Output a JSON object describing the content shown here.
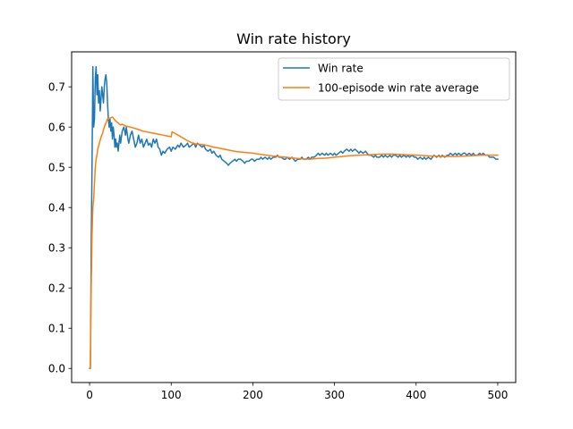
{
  "chart_data": {
    "type": "line",
    "title": "Win rate history",
    "xlabel": "",
    "ylabel": "",
    "xlim": [
      -22,
      522
    ],
    "ylim": [
      -0.035,
      0.787
    ],
    "x_ticks": [
      0,
      100,
      200,
      300,
      400,
      500
    ],
    "x_tick_labels": [
      "0",
      "100",
      "200",
      "300",
      "400",
      "500"
    ],
    "y_ticks": [
      0.0,
      0.1,
      0.2,
      0.3,
      0.4,
      0.5,
      0.6,
      0.7
    ],
    "y_tick_labels": [
      "0.0",
      "0.1",
      "0.2",
      "0.3",
      "0.4",
      "0.5",
      "0.6",
      "0.7"
    ],
    "grid": false,
    "legend_position": "top-right",
    "series": [
      {
        "name": "Win rate",
        "color": "#1f77b4",
        "points": [
          [
            0,
            0.0
          ],
          [
            1,
            0.0
          ],
          [
            2,
            0.3
          ],
          [
            3,
            0.5
          ],
          [
            4,
            0.75
          ],
          [
            5,
            0.6
          ],
          [
            6,
            0.62
          ],
          [
            7,
            0.72
          ],
          [
            8,
            0.75
          ],
          [
            9,
            0.68
          ],
          [
            10,
            0.73
          ],
          [
            11,
            0.66
          ],
          [
            12,
            0.69
          ],
          [
            13,
            0.64
          ],
          [
            14,
            0.67
          ],
          [
            15,
            0.7
          ],
          [
            16,
            0.68
          ],
          [
            17,
            0.66
          ],
          [
            18,
            0.7
          ],
          [
            19,
            0.72
          ],
          [
            20,
            0.73
          ],
          [
            21,
            0.71
          ],
          [
            22,
            0.66
          ],
          [
            23,
            0.62
          ],
          [
            24,
            0.6
          ],
          [
            25,
            0.62
          ],
          [
            26,
            0.59
          ],
          [
            27,
            0.61
          ],
          [
            28,
            0.57
          ],
          [
            29,
            0.6
          ],
          [
            30,
            0.58
          ],
          [
            31,
            0.55
          ],
          [
            32,
            0.57
          ],
          [
            33,
            0.55
          ],
          [
            34,
            0.56
          ],
          [
            35,
            0.54
          ],
          [
            36,
            0.56
          ],
          [
            37,
            0.58
          ],
          [
            38,
            0.56
          ],
          [
            40,
            0.59
          ],
          [
            42,
            0.6
          ],
          [
            44,
            0.58
          ],
          [
            45,
            0.6
          ],
          [
            47,
            0.57
          ],
          [
            48,
            0.56
          ],
          [
            50,
            0.58
          ],
          [
            52,
            0.59
          ],
          [
            54,
            0.57
          ],
          [
            56,
            0.55
          ],
          [
            58,
            0.56
          ],
          [
            60,
            0.58
          ],
          [
            62,
            0.56
          ],
          [
            64,
            0.57
          ],
          [
            66,
            0.55
          ],
          [
            68,
            0.56
          ],
          [
            70,
            0.57
          ],
          [
            72,
            0.555
          ],
          [
            74,
            0.56
          ],
          [
            76,
            0.55
          ],
          [
            78,
            0.57
          ],
          [
            80,
            0.56
          ],
          [
            82,
            0.57
          ],
          [
            84,
            0.55
          ],
          [
            86,
            0.545
          ],
          [
            88,
            0.53
          ],
          [
            90,
            0.54
          ],
          [
            92,
            0.535
          ],
          [
            95,
            0.545
          ],
          [
            98,
            0.55
          ],
          [
            100,
            0.54
          ],
          [
            102,
            0.55
          ],
          [
            105,
            0.545
          ],
          [
            108,
            0.555
          ],
          [
            110,
            0.55
          ],
          [
            112,
            0.56
          ],
          [
            115,
            0.55
          ],
          [
            118,
            0.555
          ],
          [
            120,
            0.56
          ],
          [
            122,
            0.55
          ],
          [
            125,
            0.555
          ],
          [
            128,
            0.56
          ],
          [
            130,
            0.55
          ],
          [
            132,
            0.56
          ],
          [
            135,
            0.555
          ],
          [
            138,
            0.55
          ],
          [
            140,
            0.555
          ],
          [
            142,
            0.545
          ],
          [
            145,
            0.54
          ],
          [
            148,
            0.545
          ],
          [
            150,
            0.535
          ],
          [
            152,
            0.54
          ],
          [
            155,
            0.53
          ],
          [
            158,
            0.525
          ],
          [
            160,
            0.53
          ],
          [
            162,
            0.52
          ],
          [
            165,
            0.515
          ],
          [
            168,
            0.51
          ],
          [
            170,
            0.505
          ],
          [
            172,
            0.51
          ],
          [
            175,
            0.515
          ],
          [
            178,
            0.52
          ],
          [
            180,
            0.515
          ],
          [
            182,
            0.52
          ],
          [
            185,
            0.52
          ],
          [
            188,
            0.515
          ],
          [
            190,
            0.51
          ],
          [
            192,
            0.515
          ],
          [
            195,
            0.515
          ],
          [
            198,
            0.52
          ],
          [
            200,
            0.52
          ],
          [
            202,
            0.515
          ],
          [
            205,
            0.52
          ],
          [
            208,
            0.52
          ],
          [
            210,
            0.525
          ],
          [
            212,
            0.52
          ],
          [
            215,
            0.525
          ],
          [
            218,
            0.52
          ],
          [
            220,
            0.525
          ],
          [
            222,
            0.52
          ],
          [
            225,
            0.525
          ],
          [
            228,
            0.525
          ],
          [
            230,
            0.53
          ],
          [
            232,
            0.525
          ],
          [
            235,
            0.525
          ],
          [
            238,
            0.52
          ],
          [
            240,
            0.52
          ],
          [
            242,
            0.525
          ],
          [
            245,
            0.52
          ],
          [
            248,
            0.525
          ],
          [
            250,
            0.52
          ],
          [
            252,
            0.515
          ],
          [
            255,
            0.52
          ],
          [
            258,
            0.52
          ],
          [
            260,
            0.525
          ],
          [
            262,
            0.52
          ],
          [
            265,
            0.52
          ],
          [
            268,
            0.525
          ],
          [
            270,
            0.52
          ],
          [
            272,
            0.525
          ],
          [
            275,
            0.525
          ],
          [
            278,
            0.53
          ],
          [
            280,
            0.535
          ],
          [
            282,
            0.53
          ],
          [
            285,
            0.535
          ],
          [
            288,
            0.53
          ],
          [
            290,
            0.535
          ],
          [
            292,
            0.53
          ],
          [
            295,
            0.535
          ],
          [
            298,
            0.53
          ],
          [
            300,
            0.535
          ],
          [
            302,
            0.53
          ],
          [
            305,
            0.535
          ],
          [
            308,
            0.54
          ],
          [
            310,
            0.535
          ],
          [
            312,
            0.54
          ],
          [
            315,
            0.545
          ],
          [
            318,
            0.54
          ],
          [
            320,
            0.545
          ],
          [
            322,
            0.54
          ],
          [
            325,
            0.545
          ],
          [
            328,
            0.54
          ],
          [
            330,
            0.535
          ],
          [
            332,
            0.54
          ],
          [
            335,
            0.535
          ],
          [
            338,
            0.54
          ],
          [
            340,
            0.535
          ],
          [
            342,
            0.53
          ],
          [
            345,
            0.53
          ],
          [
            348,
            0.525
          ],
          [
            350,
            0.53
          ],
          [
            352,
            0.525
          ],
          [
            355,
            0.525
          ],
          [
            358,
            0.53
          ],
          [
            360,
            0.525
          ],
          [
            362,
            0.53
          ],
          [
            365,
            0.525
          ],
          [
            368,
            0.53
          ],
          [
            370,
            0.525
          ],
          [
            372,
            0.53
          ],
          [
            375,
            0.53
          ],
          [
            378,
            0.525
          ],
          [
            380,
            0.53
          ],
          [
            382,
            0.525
          ],
          [
            385,
            0.53
          ],
          [
            388,
            0.525
          ],
          [
            390,
            0.53
          ],
          [
            392,
            0.525
          ],
          [
            395,
            0.53
          ],
          [
            398,
            0.525
          ],
          [
            400,
            0.525
          ],
          [
            402,
            0.52
          ],
          [
            405,
            0.525
          ],
          [
            408,
            0.52
          ],
          [
            410,
            0.525
          ],
          [
            412,
            0.52
          ],
          [
            415,
            0.525
          ],
          [
            418,
            0.52
          ],
          [
            420,
            0.525
          ],
          [
            422,
            0.53
          ],
          [
            425,
            0.525
          ],
          [
            428,
            0.53
          ],
          [
            430,
            0.525
          ],
          [
            432,
            0.53
          ],
          [
            435,
            0.525
          ],
          [
            438,
            0.53
          ],
          [
            440,
            0.53
          ],
          [
            442,
            0.535
          ],
          [
            445,
            0.53
          ],
          [
            448,
            0.535
          ],
          [
            450,
            0.53
          ],
          [
            452,
            0.535
          ],
          [
            455,
            0.53
          ],
          [
            458,
            0.535
          ],
          [
            460,
            0.535
          ],
          [
            462,
            0.53
          ],
          [
            465,
            0.535
          ],
          [
            468,
            0.53
          ],
          [
            470,
            0.535
          ],
          [
            472,
            0.53
          ],
          [
            475,
            0.53
          ],
          [
            478,
            0.535
          ],
          [
            480,
            0.53
          ],
          [
            482,
            0.535
          ],
          [
            485,
            0.53
          ],
          [
            488,
            0.53
          ],
          [
            490,
            0.525
          ],
          [
            492,
            0.525
          ],
          [
            495,
            0.525
          ],
          [
            498,
            0.52
          ],
          [
            500,
            0.52
          ]
        ]
      },
      {
        "name": "100-episode win rate average",
        "color": "#ff7f0e",
        "points": [
          [
            0,
            0.0
          ],
          [
            1,
            0.0
          ],
          [
            2,
            0.2
          ],
          [
            3,
            0.33
          ],
          [
            4,
            0.4
          ],
          [
            5,
            0.42
          ],
          [
            6,
            0.46
          ],
          [
            7,
            0.5
          ],
          [
            8,
            0.52
          ],
          [
            9,
            0.53
          ],
          [
            10,
            0.545
          ],
          [
            12,
            0.56
          ],
          [
            14,
            0.575
          ],
          [
            16,
            0.585
          ],
          [
            18,
            0.6
          ],
          [
            20,
            0.61
          ],
          [
            22,
            0.62
          ],
          [
            25,
            0.622
          ],
          [
            28,
            0.625
          ],
          [
            30,
            0.62
          ],
          [
            32,
            0.615
          ],
          [
            35,
            0.61
          ],
          [
            38,
            0.605
          ],
          [
            40,
            0.607
          ],
          [
            45,
            0.602
          ],
          [
            50,
            0.6
          ],
          [
            55,
            0.597
          ],
          [
            60,
            0.594
          ],
          [
            65,
            0.59
          ],
          [
            70,
            0.588
          ],
          [
            75,
            0.586
          ],
          [
            80,
            0.584
          ],
          [
            85,
            0.582
          ],
          [
            90,
            0.58
          ],
          [
            95,
            0.578
          ],
          [
            100,
            0.576
          ],
          [
            101,
            0.588
          ],
          [
            103,
            0.586
          ],
          [
            105,
            0.584
          ],
          [
            110,
            0.578
          ],
          [
            115,
            0.572
          ],
          [
            120,
            0.566
          ],
          [
            125,
            0.561
          ],
          [
            130,
            0.558
          ],
          [
            135,
            0.557
          ],
          [
            140,
            0.556
          ],
          [
            145,
            0.554
          ],
          [
            150,
            0.551
          ],
          [
            160,
            0.547
          ],
          [
            170,
            0.543
          ],
          [
            180,
            0.539
          ],
          [
            190,
            0.537
          ],
          [
            200,
            0.535
          ],
          [
            210,
            0.532
          ],
          [
            220,
            0.529
          ],
          [
            230,
            0.527
          ],
          [
            240,
            0.525
          ],
          [
            250,
            0.523
          ],
          [
            260,
            0.521
          ],
          [
            270,
            0.52
          ],
          [
            280,
            0.522
          ],
          [
            290,
            0.523
          ],
          [
            300,
            0.525
          ],
          [
            310,
            0.527
          ],
          [
            320,
            0.529
          ],
          [
            330,
            0.53
          ],
          [
            340,
            0.531
          ],
          [
            350,
            0.532
          ],
          [
            360,
            0.533
          ],
          [
            370,
            0.533
          ],
          [
            380,
            0.532
          ],
          [
            390,
            0.531
          ],
          [
            400,
            0.53
          ],
          [
            410,
            0.529
          ],
          [
            420,
            0.528
          ],
          [
            430,
            0.527
          ],
          [
            440,
            0.527
          ],
          [
            450,
            0.527
          ],
          [
            460,
            0.528
          ],
          [
            470,
            0.529
          ],
          [
            480,
            0.53
          ],
          [
            490,
            0.53
          ],
          [
            500,
            0.53
          ]
        ]
      }
    ]
  }
}
